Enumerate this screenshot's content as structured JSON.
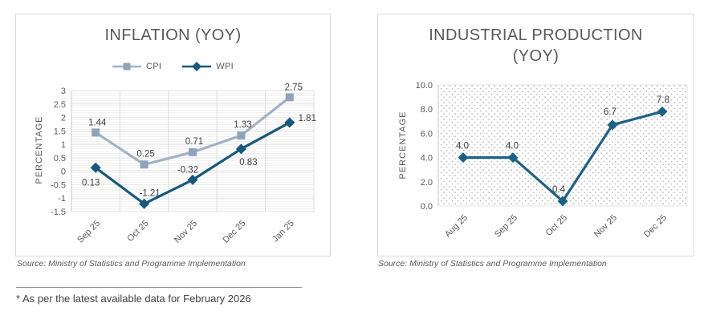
{
  "charts": [
    {
      "title_lines": [
        "INFLATION (YOY)"
      ]
    },
    {
      "title_lines": [
        "INDUSTRIAL PRODUCTION",
        "(YOY)"
      ]
    }
  ],
  "footnote": {
    "text": "* As per the latest available data for February 2026"
  },
  "chart_data": [
    {
      "type": "line",
      "title": "INFLATION (YOY)",
      "categories": [
        "Sep 25",
        "Oct 25",
        "Nov 25",
        "Dec 25",
        "Jan 25"
      ],
      "series": [
        {
          "name": "CPI",
          "values": [
            1.44,
            0.25,
            0.71,
            1.33,
            2.75
          ],
          "labels": [
            "1.44",
            "0.25",
            "0.71",
            "1.33",
            "2.75"
          ],
          "color": "#a2b1c4",
          "marker_color": "#8fa3ba",
          "marker": "square",
          "label_offsets": [
            [
              2,
              -13
            ],
            [
              2,
              -14
            ],
            [
              2,
              -14
            ],
            [
              2,
              -14
            ],
            [
              5,
              -13
            ]
          ]
        },
        {
          "name": "WPI",
          "values": [
            0.13,
            -1.21,
            -0.32,
            0.83,
            1.81
          ],
          "labels": [
            "0.13",
            "-1.21",
            "-0.32",
            "0.83",
            "1.81"
          ],
          "color": "#17597d",
          "marker_color": "#17597d",
          "marker": "diamond",
          "label_offsets": [
            [
              -6,
              18
            ],
            [
              7,
              -14
            ],
            [
              -6,
              -13
            ],
            [
              9,
              16
            ],
            [
              22,
              -6
            ]
          ]
        }
      ],
      "xlabel": "",
      "ylabel": "PERCENTAGE",
      "ylim": [
        -1.5,
        3
      ],
      "yticks": [
        3,
        2.5,
        2,
        1.5,
        1,
        0.5,
        0,
        -0.5,
        -1,
        -1.5
      ],
      "ytick_labels": [
        "3",
        "2.5",
        "2",
        "1.5",
        "1",
        "0.5",
        "0",
        "-0.5",
        "-1",
        "-1.5"
      ],
      "legend_position": "top",
      "grid": {
        "horizontal": true,
        "vertical": true
      },
      "plot_texture": "hlines",
      "source": "Source: Ministry of Statistics and Programme Implementation"
    },
    {
      "type": "line",
      "title": "INDUSTRIAL PRODUCTION (YOY)",
      "categories": [
        "Aug 25",
        "Sep 25",
        "Oct 25",
        "Nov 25",
        "Dec 25"
      ],
      "series": [
        {
          "name": "Industrial Production",
          "values": [
            4.0,
            4.0,
            0.4,
            6.7,
            7.8
          ],
          "labels": [
            "4.0",
            "4.0",
            "0.4",
            "6.7",
            "7.8"
          ],
          "color": "#1b6285",
          "marker_color": "#1b6285",
          "marker": "diamond",
          "label_offsets": [
            [
              -1,
              -15
            ],
            [
              -1,
              -15
            ],
            [
              -5,
              -15
            ],
            [
              -3,
              -17
            ],
            [
              1,
              -15
            ]
          ]
        }
      ],
      "xlabel": "",
      "ylabel": "PERCENTAGE",
      "ylim": [
        0,
        10
      ],
      "yticks": [
        10,
        8,
        6,
        4,
        2,
        0
      ],
      "ytick_labels": [
        "10.0",
        "8.0",
        "6.0",
        "4.0",
        "2.0",
        "0.0"
      ],
      "legend_position": "none",
      "grid": {
        "horizontal": false,
        "vertical": false
      },
      "plot_texture": "dots",
      "source": "Source: Ministry of Statistics and Programme Implementation"
    }
  ]
}
